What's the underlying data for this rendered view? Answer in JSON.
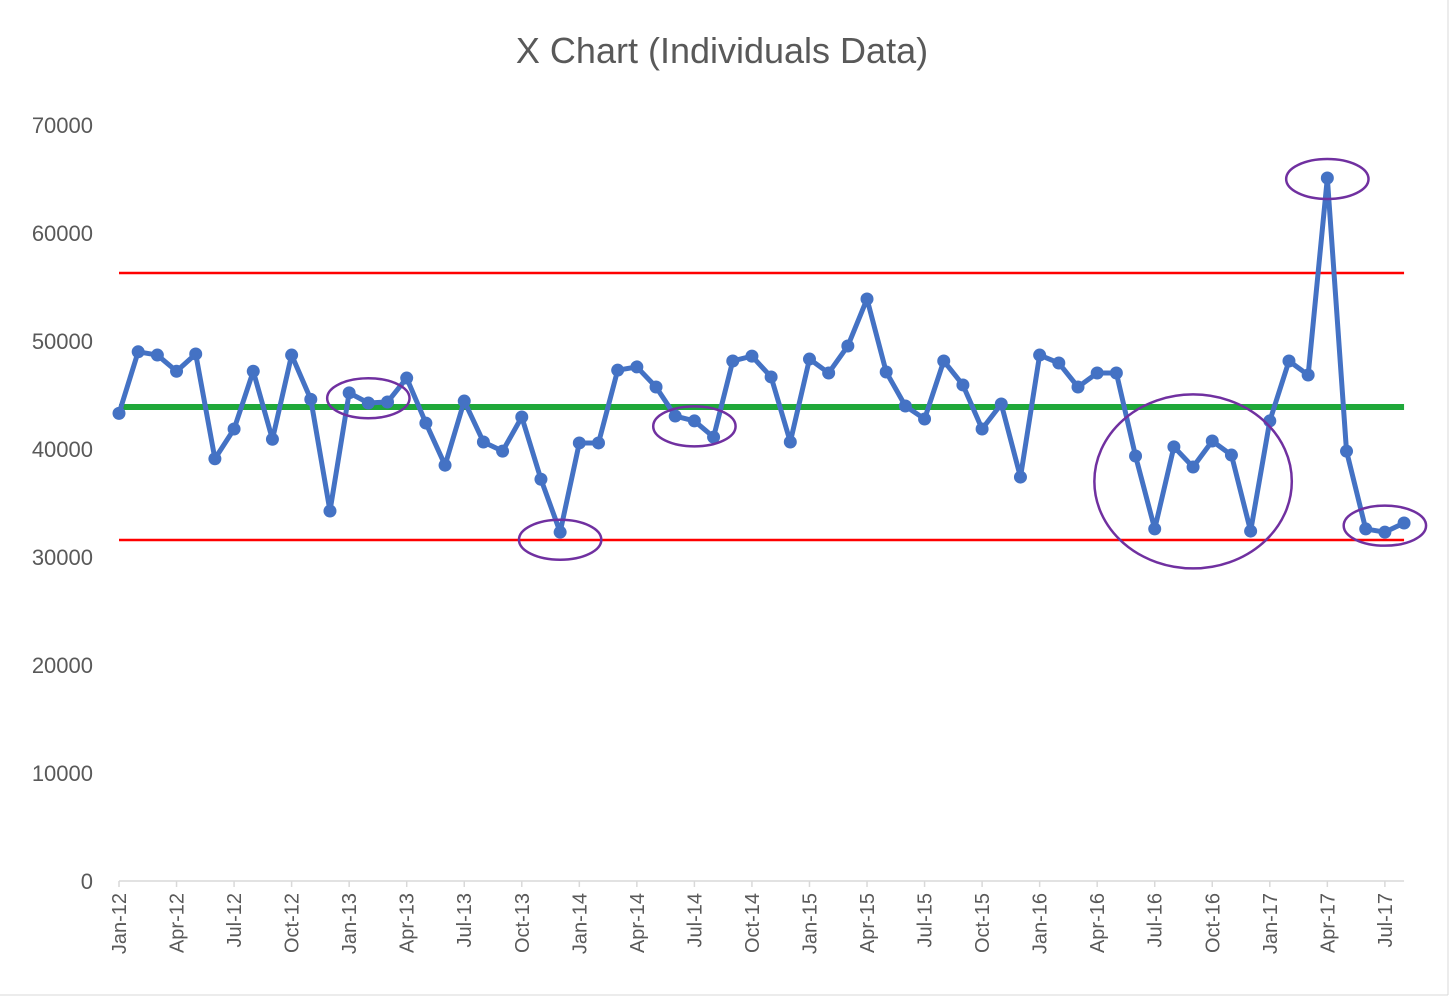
{
  "chart_data": {
    "type": "line",
    "title": "X Chart (Individuals Data)",
    "xlabel": "",
    "ylabel": "",
    "ylim": [
      0,
      70000
    ],
    "yticks": [
      "0",
      "10000",
      "20000",
      "30000",
      "40000",
      "50000",
      "60000",
      "70000"
    ],
    "xtick_labels": [
      "Jan-12",
      "Apr-12",
      "Jul-12",
      "Oct-12",
      "Jan-13",
      "Apr-13",
      "Jul-13",
      "Oct-13",
      "Jan-14",
      "Apr-14",
      "Jul-14",
      "Oct-14",
      "Jan-15",
      "Apr-15",
      "Jul-15",
      "Oct-15",
      "Jan-16",
      "Apr-16",
      "Jul-16",
      "Oct-16",
      "Jan-17",
      "Apr-17",
      "Jul-17"
    ],
    "grid": false,
    "series": [
      {
        "name": "Individuals",
        "color": "#4472C4",
        "x": [
          "Jan-12",
          "Feb-12",
          "Mar-12",
          "Apr-12",
          "May-12",
          "Jun-12",
          "Jul-12",
          "Aug-12",
          "Sep-12",
          "Oct-12",
          "Nov-12",
          "Dec-12",
          "Jan-13",
          "Feb-13",
          "Mar-13",
          "Apr-13",
          "May-13",
          "Jun-13",
          "Jul-13",
          "Aug-13",
          "Sep-13",
          "Oct-13",
          "Nov-13",
          "Dec-13",
          "Jan-14",
          "Feb-14",
          "Mar-14",
          "Apr-14",
          "May-14",
          "Jun-14",
          "Jul-14",
          "Aug-14",
          "Sep-14",
          "Oct-14",
          "Nov-14",
          "Dec-14",
          "Jan-15",
          "Feb-15",
          "Mar-15",
          "Apr-15",
          "May-15",
          "Jun-15",
          "Jul-15",
          "Aug-15",
          "Sep-15",
          "Oct-15",
          "Nov-15",
          "Dec-15",
          "Jan-16",
          "Feb-16",
          "Mar-16",
          "Apr-16",
          "May-16",
          "Jun-16",
          "Jul-16",
          "Aug-16",
          "Sep-16",
          "Oct-16",
          "Nov-16",
          "Dec-16",
          "Jan-17",
          "Feb-17",
          "Mar-17",
          "Apr-17",
          "May-17",
          "Jun-17",
          "Jul-17",
          "Aug-17"
        ],
        "values": [
          43300,
          49000,
          48700,
          47200,
          48800,
          39100,
          41850,
          47200,
          40900,
          48700,
          44600,
          34260,
          45200,
          44260,
          44350,
          46570,
          42400,
          38500,
          44440,
          40650,
          39800,
          42960,
          37200,
          32300,
          40560,
          40560,
          47300,
          47600,
          45740,
          43050,
          42600,
          41100,
          48150,
          48600,
          46670,
          40650,
          48330,
          47040,
          49540,
          53890,
          47130,
          43980,
          42780,
          48150,
          45930,
          41850,
          44170,
          37400,
          48700,
          47960,
          45740,
          47040,
          47040,
          39350,
          32600,
          40200,
          38330,
          40740,
          39440,
          32400,
          42600,
          48150,
          46850,
          65090,
          39800,
          32600,
          32300,
          33150
        ]
      },
      {
        "name": "Average",
        "color": "#1FA83A",
        "constant": 43890
      },
      {
        "name": "Upper Limit",
        "color": "#FF0000",
        "constant": 56300
      },
      {
        "name": "Lower Limit",
        "color": "#FF0000",
        "constant": 31570
      }
    ],
    "annotations": [
      {
        "type": "ellipse",
        "color": "#7030A0",
        "from": "Jan-13",
        "to": "Mar-13",
        "center_value": 44700
      },
      {
        "type": "ellipse",
        "color": "#7030A0",
        "from": "Nov-13",
        "to": "Jan-14",
        "center_value": 31600
      },
      {
        "type": "ellipse",
        "color": "#7030A0",
        "from": "Jun-14",
        "to": "Aug-14",
        "center_value": 42100
      },
      {
        "type": "ellipse",
        "color": "#7030A0",
        "from": "May-16",
        "to": "Jan-17",
        "center_value": 37000
      },
      {
        "type": "ellipse",
        "color": "#7030A0",
        "from": "Mar-17",
        "to": "May-17",
        "center_value": 65000
      },
      {
        "type": "ellipse",
        "color": "#7030A0",
        "from": "Jun-17",
        "to": "Aug-17",
        "center_value": 32900
      }
    ]
  }
}
